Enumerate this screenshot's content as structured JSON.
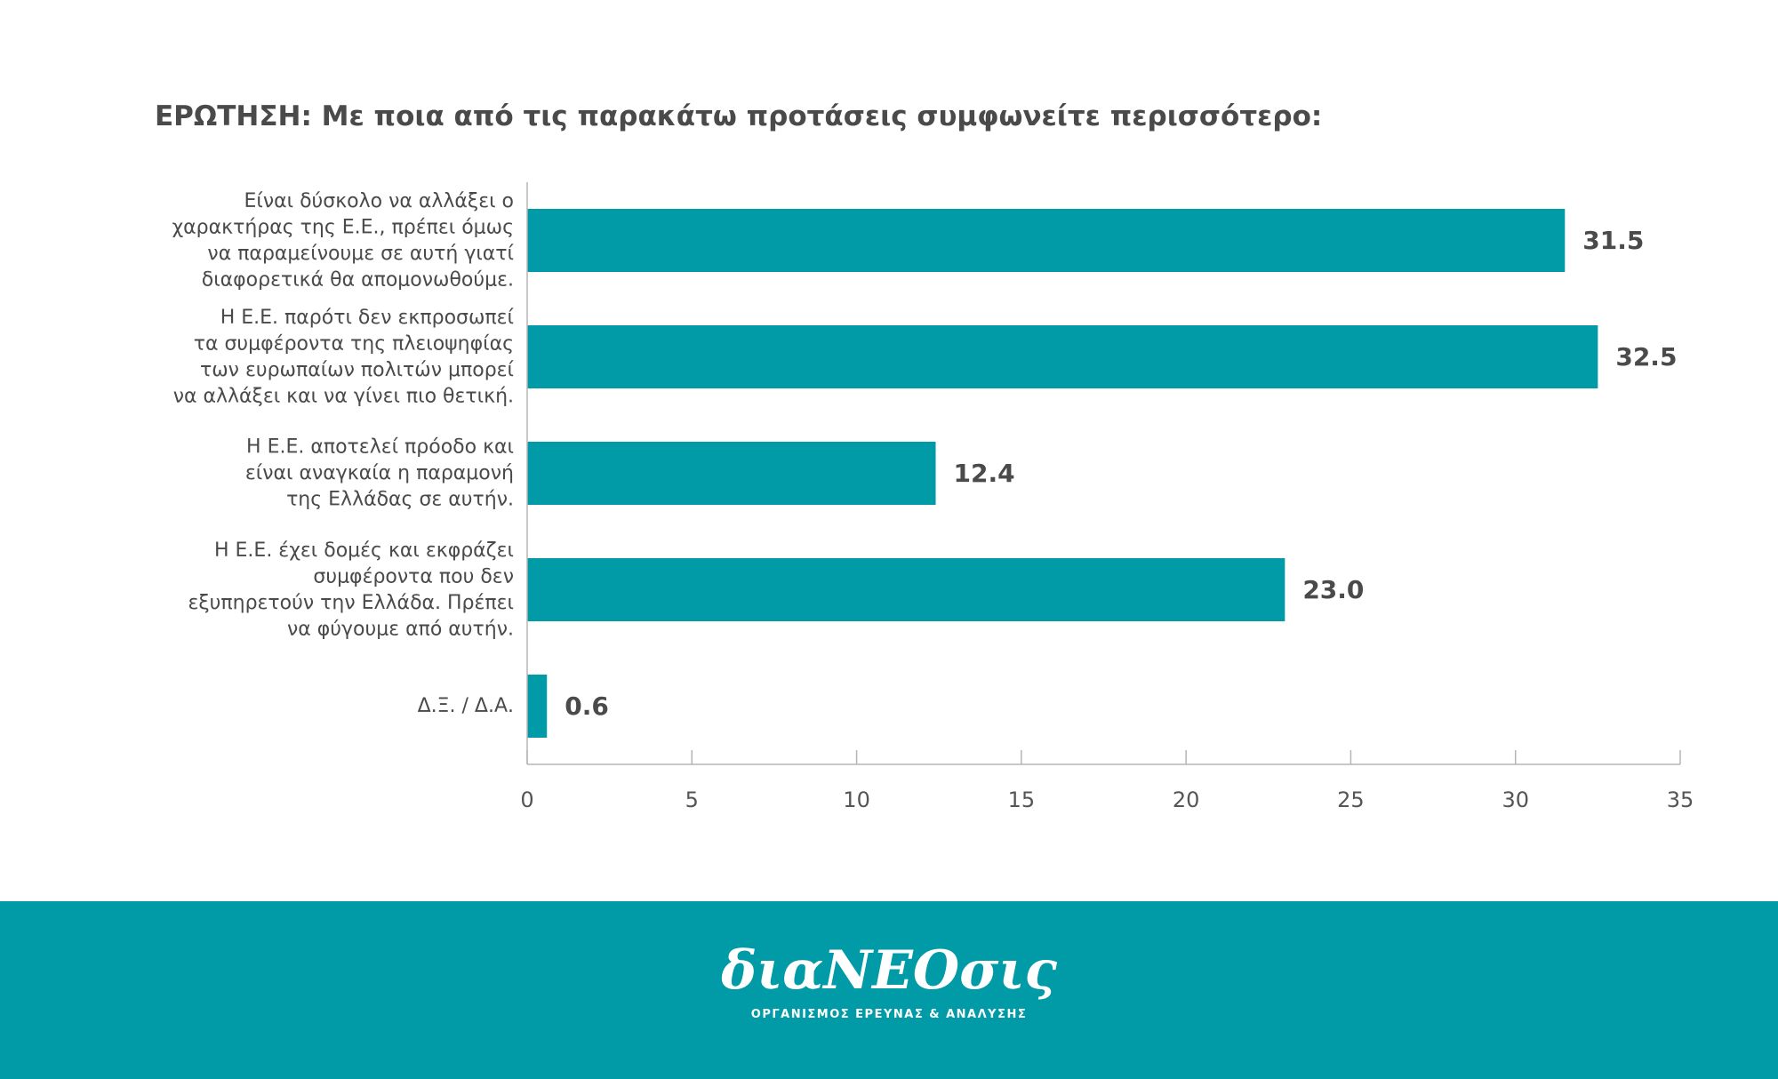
{
  "header": {
    "question": "ΕΡΩΤΗΣΗ: Με ποια από τις παρακάτω προτάσεις συμφωνείτε περισσότερο:"
  },
  "chart_data": {
    "type": "bar",
    "orientation": "horizontal",
    "title": "",
    "xlabel": "",
    "ylabel": "",
    "categories": [
      [
        "Είναι δύσκολο να αλλάξει ο",
        "χαρακτήρας της Ε.Ε., πρέπει όμως",
        "να παραμείνουμε σε αυτή γιατί",
        "διαφορετικά θα απομονωθούμε."
      ],
      [
        "Η Ε.Ε. παρότι δεν εκπροσωπεί",
        "τα συμφέροντα της πλειοψηφίας",
        "των ευρωπαίων πολιτών μπορεί",
        "να αλλάξει και να γίνει πιο θετική."
      ],
      [
        "Η Ε.Ε. αποτελεί πρόοδο και",
        "είναι αναγκαία η παραμονή",
        "της Ελλάδας σε αυτήν."
      ],
      [
        "Η Ε.Ε. έχει δομές και εκφράζει",
        "συμφέροντα που δεν",
        "εξυπηρετούν την Ελλάδα. Πρέπει",
        "να φύγουμε από αυτήν."
      ],
      [
        "Δ.Ξ. / Δ.Α."
      ]
    ],
    "values": [
      31.5,
      32.5,
      12.4,
      23.0,
      0.6
    ],
    "value_labels": [
      "31.5",
      "32.5",
      "12.4",
      "23.0",
      "0.6"
    ],
    "xlim": [
      0,
      35
    ],
    "xticks": [
      0,
      5,
      10,
      15,
      20,
      25,
      30,
      35
    ],
    "grid": false,
    "legend": "none",
    "bar_color": "#009ba7"
  },
  "footer": {
    "logo_text": "διαΝΕΟσις",
    "tagline": "ΟΡΓΑΝΙΣΜΟΣ ΕΡΕΥΝΑΣ & ΑΝΑΛΥΣΗΣ",
    "background_color": "#009ba7"
  }
}
